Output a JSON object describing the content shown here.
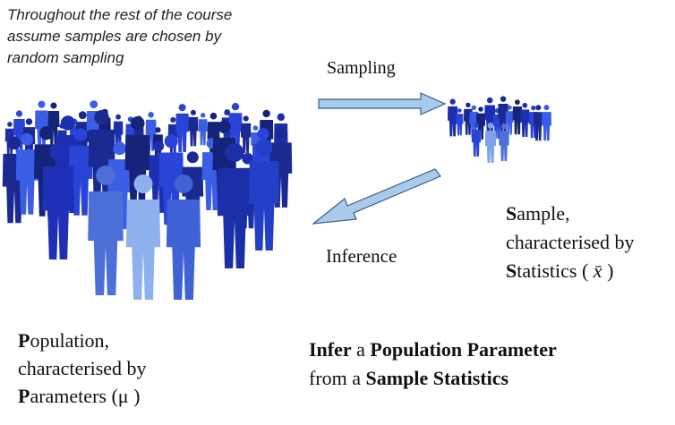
{
  "note": [
    "Throughout the rest of the course",
    "assume samples are chosen by",
    "random sampling"
  ],
  "arrows": {
    "sampling": "Sampling",
    "inference": "Inference"
  },
  "sample": {
    "line1": [
      "S",
      "ample,"
    ],
    "line2": "characterised by",
    "line3": [
      "S",
      "tatistics ( ",
      "x̄",
      " )"
    ]
  },
  "population": {
    "line1": [
      "P",
      "opulation,"
    ],
    "line2": "characterised by",
    "line3": [
      "P",
      "arameters (μ )"
    ]
  },
  "conclusion": {
    "line1": [
      "Infer",
      " a ",
      "Population Parameter"
    ],
    "line2": [
      "from a ",
      "Sample Statistics"
    ]
  }
}
